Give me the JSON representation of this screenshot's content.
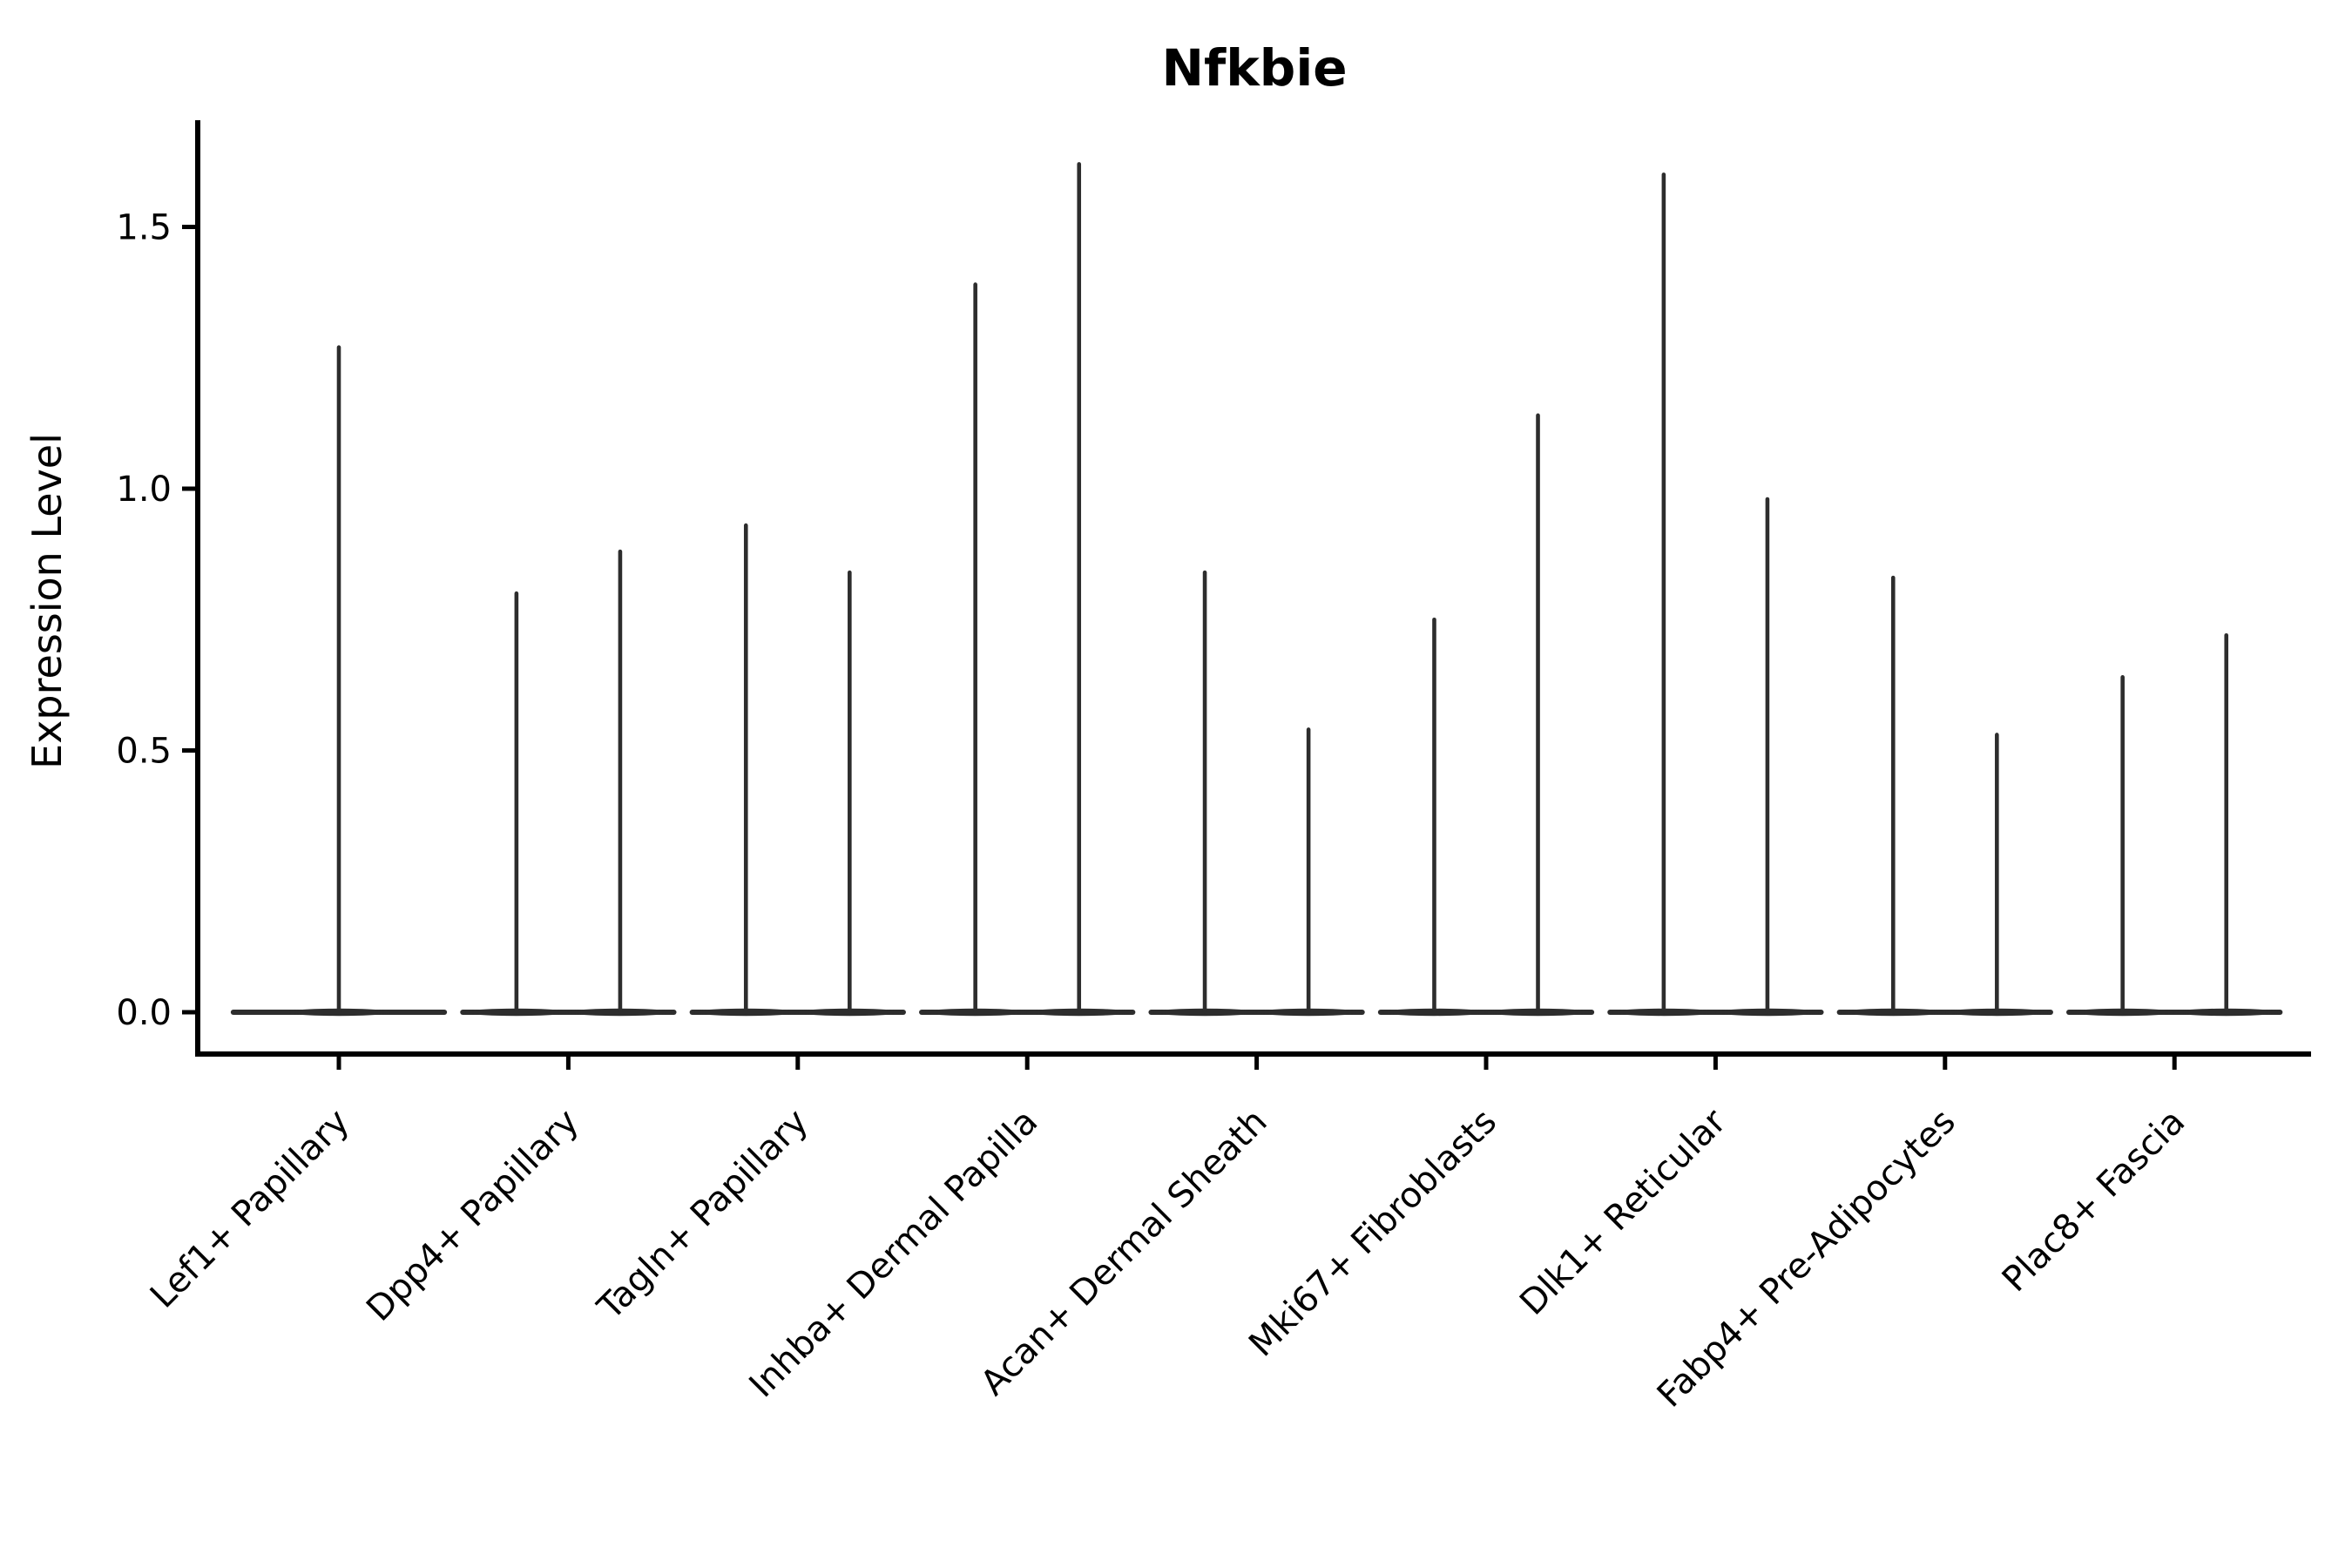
{
  "chart_data": {
    "type": "violin",
    "title": "Nfkbie",
    "xlabel": "",
    "ylabel": "Expression Level",
    "ylim": [
      -0.08,
      1.7
    ],
    "grid": false,
    "legend": null,
    "violin_color": "#2d2d2d",
    "axis_color": "#000000",
    "background_color": "#ffffff",
    "yticks": [
      {
        "value": 0.0,
        "label": "0.0"
      },
      {
        "value": 0.5,
        "label": "0.5"
      },
      {
        "value": 1.0,
        "label": "1.0"
      },
      {
        "value": 1.5,
        "label": "1.5"
      }
    ],
    "baseline_halfwidth": 0.46,
    "categories": [
      {
        "label": "Lef1+ Papillary",
        "violins": [
          {
            "offset": 0.0,
            "max": 1.27
          }
        ]
      },
      {
        "label": "Dpp4+ Papillary",
        "violins": [
          {
            "offset": -0.226,
            "max": 0.8
          },
          {
            "offset": 0.226,
            "max": 0.88
          }
        ]
      },
      {
        "label": "Tagln+ Papillary",
        "violins": [
          {
            "offset": -0.226,
            "max": 0.93
          },
          {
            "offset": 0.226,
            "max": 0.84
          }
        ]
      },
      {
        "label": "Inhba+ Dermal Papilla",
        "violins": [
          {
            "offset": -0.226,
            "max": 1.39
          },
          {
            "offset": 0.226,
            "max": 1.62
          }
        ]
      },
      {
        "label": "Acan+ Dermal Sheath",
        "violins": [
          {
            "offset": -0.226,
            "max": 0.84
          },
          {
            "offset": 0.226,
            "max": 0.54
          }
        ]
      },
      {
        "label": "Mki67+ Fibroblasts",
        "violins": [
          {
            "offset": -0.226,
            "max": 0.75
          },
          {
            "offset": 0.226,
            "max": 1.14
          }
        ]
      },
      {
        "label": "Dlk1+ Reticular",
        "violins": [
          {
            "offset": -0.226,
            "max": 1.6
          },
          {
            "offset": 0.226,
            "max": 0.98
          }
        ]
      },
      {
        "label": "Fabp4+ Pre-Adipocytes",
        "violins": [
          {
            "offset": -0.226,
            "max": 0.83
          },
          {
            "offset": 0.226,
            "max": 0.53
          }
        ]
      },
      {
        "label": "Plac8+ Fascia",
        "violins": [
          {
            "offset": -0.226,
            "max": 0.64
          },
          {
            "offset": 0.226,
            "max": 0.72
          }
        ]
      }
    ]
  }
}
